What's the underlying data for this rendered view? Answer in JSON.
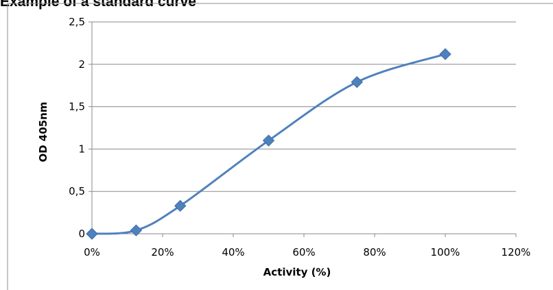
{
  "chart_data": {
    "type": "scatter",
    "title": "Example of a standard curve",
    "xlabel": "Activity (%)",
    "ylabel": "OD 405nm",
    "xlim": [
      0,
      120
    ],
    "ylim": [
      0,
      2.5
    ],
    "x_ticks": [
      0,
      20,
      40,
      60,
      80,
      100,
      120
    ],
    "x_tick_labels": [
      "0%",
      "20%",
      "40%",
      "60%",
      "80%",
      "100%",
      "120%"
    ],
    "y_ticks": [
      0,
      0.5,
      1,
      1.5,
      2,
      2.5
    ],
    "y_tick_labels": [
      "0",
      "0,5",
      "1",
      "1,5",
      "2",
      "2,5"
    ],
    "grid": "horizontal",
    "legend": "none",
    "line": "smoothed",
    "series": [
      {
        "x": [
          0,
          12.5,
          25,
          50,
          75,
          100
        ],
        "y": [
          0,
          0.04,
          0.33,
          1.1,
          1.79,
          2.12
        ],
        "color": "#4f81bd"
      }
    ]
  }
}
